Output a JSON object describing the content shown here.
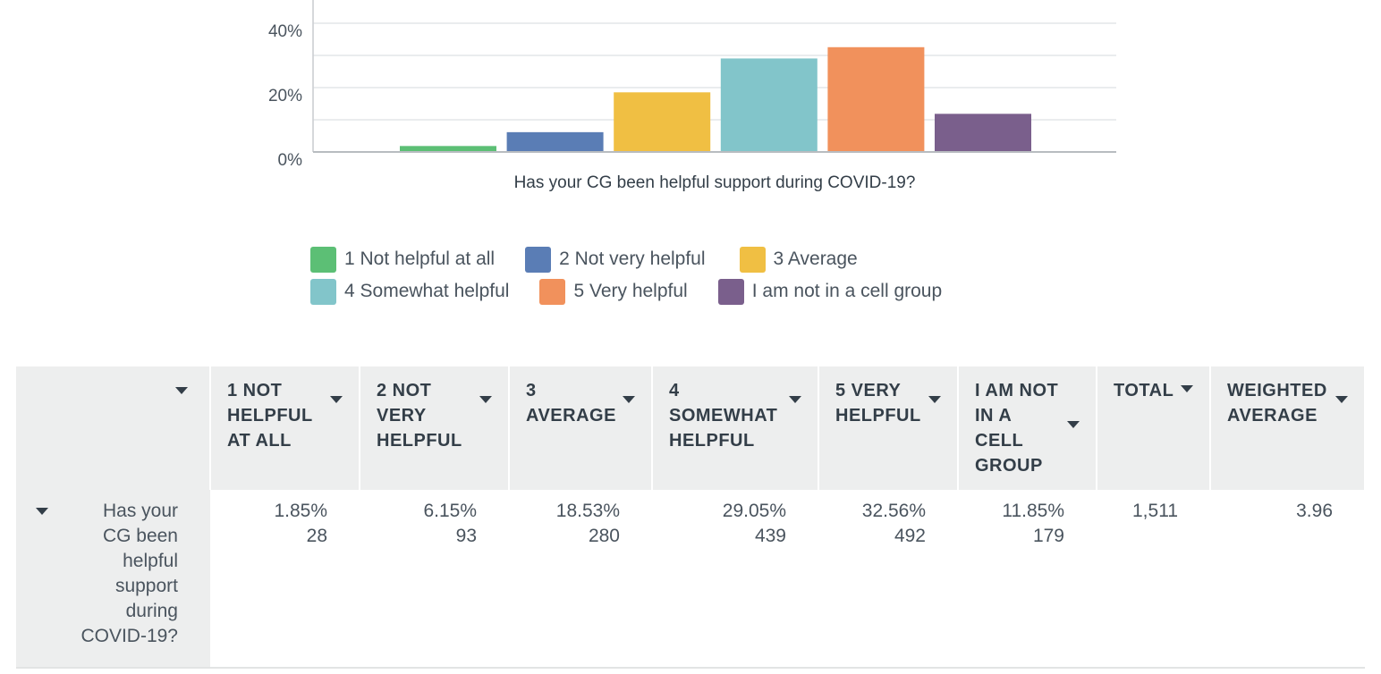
{
  "chart_data": {
    "type": "bar",
    "xlabel": "Has your CG been helpful support during COVID-19?",
    "yticks": [
      "0%",
      "20%",
      "40%"
    ],
    "ylim": [
      0,
      50
    ],
    "grid": true,
    "legend_placement": "bottom",
    "series": [
      {
        "name": "1 Not helpful at all",
        "value": 1.85,
        "color": "#5cbf75"
      },
      {
        "name": "2 Not very helpful",
        "value": 6.15,
        "color": "#5a7db5"
      },
      {
        "name": "3 Average",
        "value": 18.53,
        "color": "#f0bf43"
      },
      {
        "name": "4 Somewhat helpful",
        "value": 29.05,
        "color": "#82c5ca"
      },
      {
        "name": "5 Very helpful",
        "value": 32.56,
        "color": "#f1915c"
      },
      {
        "name": "I am not in a cell group",
        "value": 11.85,
        "color": "#7a5f8c"
      }
    ]
  },
  "table": {
    "headers": [
      "1 NOT HELPFUL AT ALL",
      "2 NOT VERY HELPFUL",
      "3 AVERAGE",
      "4 SOMEWHAT HELPFUL",
      "5 VERY HELPFUL",
      "I AM NOT IN A CELL GROUP",
      "TOTAL",
      "WEIGHTED AVERAGE"
    ],
    "row": {
      "label": "Has your CG been helpful support during COVID-19?",
      "cells": [
        {
          "percent": "1.85%",
          "count": "28"
        },
        {
          "percent": "6.15%",
          "count": "93"
        },
        {
          "percent": "18.53%",
          "count": "280"
        },
        {
          "percent": "29.05%",
          "count": "439"
        },
        {
          "percent": "32.56%",
          "count": "492"
        },
        {
          "percent": "11.85%",
          "count": "179"
        }
      ],
      "total": "1,511",
      "weighted_average": "3.96"
    }
  }
}
